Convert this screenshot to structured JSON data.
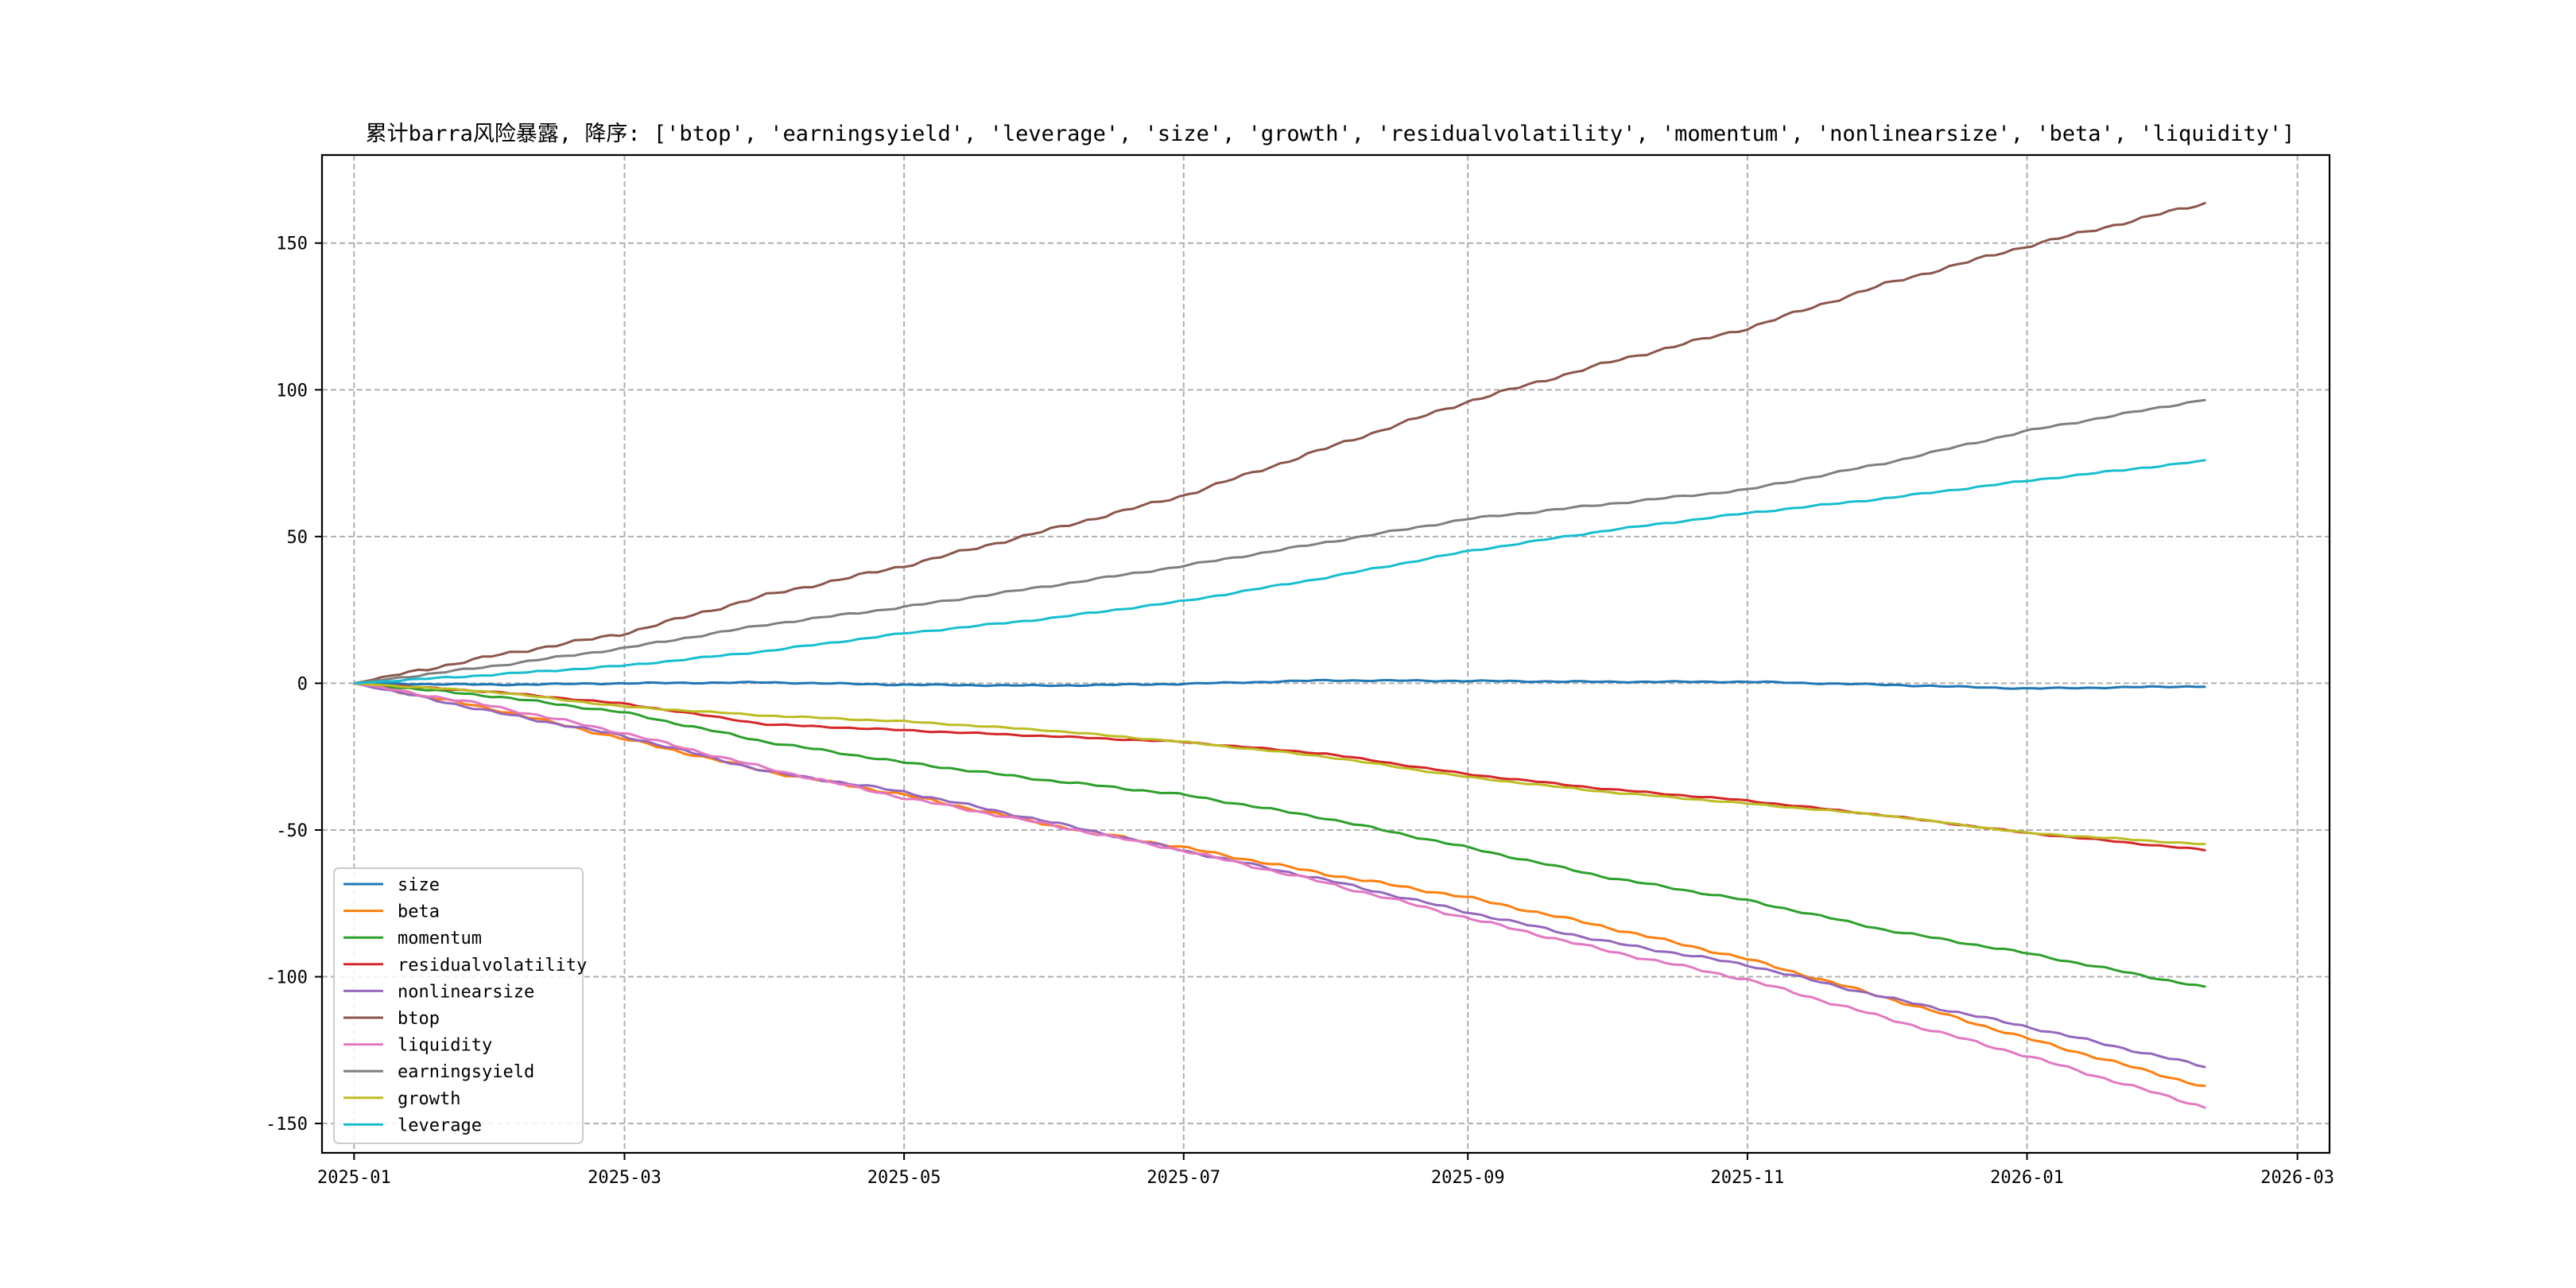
{
  "chart_data": {
    "type": "line",
    "title": "累计barra风险暴露, 降序: ['btop', 'earningsyield', 'leverage', 'size', 'growth', 'residualvolatility', 'momentum', 'nonlinearsize', 'beta', 'liquidity']",
    "xlabel": "",
    "ylabel": "",
    "x_ticks": [
      "2025-01",
      "2025-03",
      "2025-05",
      "2025-07",
      "2025-09",
      "2025-11",
      "2026-01",
      "2026-03"
    ],
    "y_ticks": [
      -150,
      -100,
      -50,
      0,
      50,
      100,
      150
    ],
    "xlim": [
      "2024-12-25",
      "2026-03-08"
    ],
    "ylim": [
      -160,
      180
    ],
    "grid": true,
    "legend_position": "lower-left",
    "x": [
      "2025-01-01",
      "2025-02-01",
      "2025-03-01",
      "2025-04-01",
      "2025-05-01",
      "2025-06-01",
      "2025-07-01",
      "2025-08-01",
      "2025-09-01",
      "2025-10-01",
      "2025-11-01",
      "2025-12-01",
      "2026-01-01",
      "2026-02-10"
    ],
    "series": [
      {
        "name": "size",
        "color": "#1f77b4",
        "values": [
          0,
          -0.5,
          0,
          0.3,
          -0.5,
          -0.8,
          -0.2,
          1.0,
          0.8,
          0.5,
          0.5,
          -0.5,
          -1.8,
          -1.0
        ]
      },
      {
        "name": "beta",
        "color": "#ff7f0e",
        "values": [
          0,
          -9,
          -19,
          -30,
          -38,
          -48,
          -56,
          -65,
          -73,
          -83,
          -94,
          -107,
          -121,
          -138
        ]
      },
      {
        "name": "momentum",
        "color": "#2ca02c",
        "values": [
          0,
          -4.5,
          -10,
          -20,
          -27,
          -33,
          -38,
          -46,
          -56,
          -66,
          -74,
          -84,
          -92,
          -104
        ]
      },
      {
        "name": "residualvolatility",
        "color": "#d62728",
        "values": [
          0,
          -3,
          -7,
          -14,
          -16,
          -18,
          -20,
          -24,
          -31,
          -36,
          -40,
          -45,
          -51,
          -57
        ]
      },
      {
        "name": "nonlinearsize",
        "color": "#9467bd",
        "values": [
          0,
          -10,
          -18,
          -30,
          -37,
          -47,
          -57,
          -67,
          -78,
          -88,
          -96,
          -107,
          -117,
          -131
        ]
      },
      {
        "name": "btop",
        "color": "#8c564b",
        "values": [
          0,
          9.5,
          17,
          30,
          40,
          52,
          64,
          80,
          96,
          109,
          121,
          136,
          149,
          164
        ]
      },
      {
        "name": "liquidity",
        "color": "#e377c2",
        "values": [
          0,
          -8,
          -17,
          -29,
          -39,
          -48,
          -57,
          -68,
          -80,
          -91,
          -101,
          -114,
          -127,
          -145
        ]
      },
      {
        "name": "earningsyield",
        "color": "#7f7f7f",
        "values": [
          0,
          6,
          12,
          20,
          26,
          33,
          40,
          48,
          56,
          61,
          66,
          75,
          86,
          97
        ]
      },
      {
        "name": "growth",
        "color": "#bcbd22",
        "values": [
          0,
          -3,
          -8,
          -11,
          -13,
          -16,
          -20,
          -25,
          -32,
          -37,
          -41,
          -45,
          -51,
          -55
        ]
      },
      {
        "name": "leverage",
        "color": "#17becf",
        "values": [
          0,
          3,
          6,
          11,
          17,
          22,
          28,
          36,
          45,
          52,
          58,
          63,
          69,
          76
        ]
      }
    ]
  }
}
